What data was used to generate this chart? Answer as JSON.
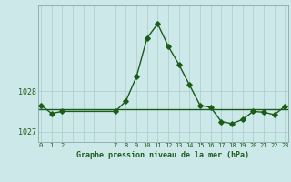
{
  "hours": [
    0,
    1,
    2,
    7,
    8,
    9,
    10,
    11,
    12,
    13,
    14,
    15,
    16,
    17,
    18,
    19,
    20,
    21,
    22,
    23
  ],
  "pressure": [
    1027.65,
    1027.45,
    1027.5,
    1027.5,
    1027.75,
    1028.35,
    1029.3,
    1029.65,
    1029.1,
    1028.65,
    1028.15,
    1027.65,
    1027.6,
    1027.25,
    1027.2,
    1027.3,
    1027.5,
    1027.48,
    1027.42,
    1027.62
  ],
  "ref_line_y": 1027.55,
  "ylim": [
    1026.75,
    1030.1
  ],
  "yticks": [
    1027.0,
    1028.0
  ],
  "ytick_labels": [
    "1027",
    "1028"
  ],
  "xticks": [
    0,
    1,
    2,
    7,
    8,
    9,
    10,
    11,
    12,
    13,
    14,
    15,
    16,
    17,
    18,
    19,
    20,
    21,
    22,
    23
  ],
  "xlim": [
    -0.3,
    23.3
  ],
  "xlabel": "Graphe pression niveau de la mer (hPa)",
  "line_color": "#1a5c1a",
  "bg_color": "#cce8e8",
  "grid_color_v": "#aacccc",
  "grid_color_h": "#aacccc",
  "marker": "D",
  "markersize": 2.8,
  "linewidth": 1.0,
  "tick_fontsize": 5.0,
  "xlabel_fontsize": 6.0
}
